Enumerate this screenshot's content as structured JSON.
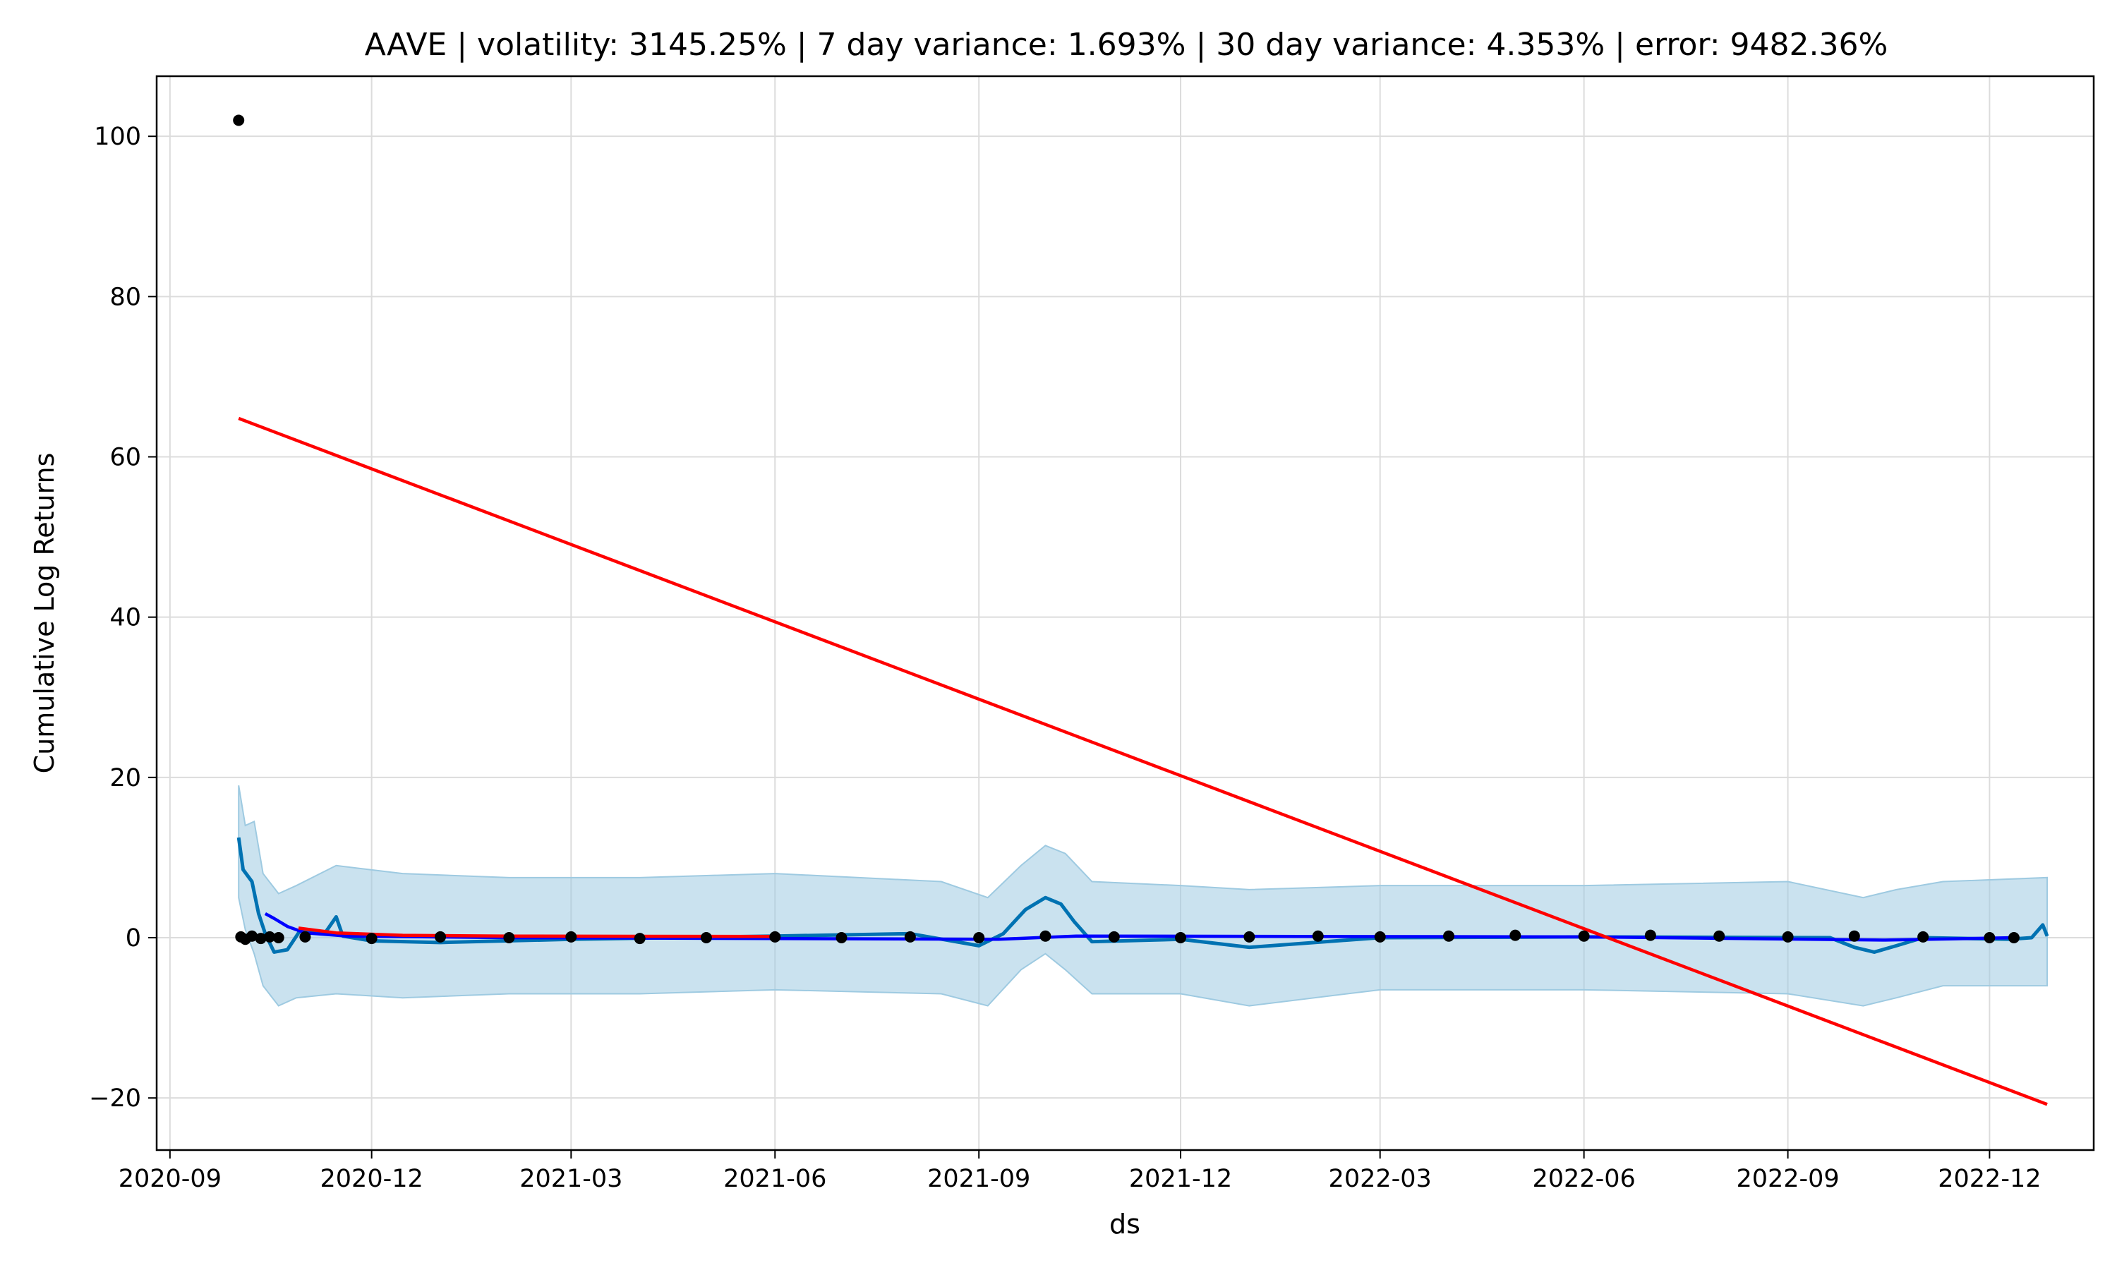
{
  "chart_data": {
    "type": "line",
    "title": "AAVE | volatility: 3145.25% | 7 day variance: 1.693% | 30 day variance: 4.353% | error: 9482.36%",
    "xlabel": "ds",
    "ylabel": "Cumulative Log Returns",
    "xlim": [
      "2020-08-26",
      "2023-01-17"
    ],
    "ylim": [
      -26.5,
      107.5
    ],
    "grid": true,
    "legend": "none",
    "x_ticks": [
      "2020-09",
      "2020-12",
      "2021-03",
      "2021-06",
      "2021-09",
      "2021-12",
      "2022-03",
      "2022-06",
      "2022-09",
      "2022-12"
    ],
    "y_ticks": [
      -20,
      0,
      20,
      40,
      60,
      80,
      100
    ],
    "y_tick_labels": [
      "−20",
      "0",
      "20",
      "40",
      "60",
      "80",
      "100"
    ],
    "colors": {
      "uncertainty_band": "#9ecae1",
      "forecast": "#0072b2",
      "observed": "#000000",
      "moving_average": "#0000ff",
      "trend_line": "#ff0000"
    },
    "series": [
      {
        "role": "observed",
        "kind": "scatter",
        "points": [
          {
            "x": "2020-10-02",
            "y": 102
          },
          {
            "x": "2020-10-03",
            "y": 0.1
          },
          {
            "x": "2020-10-05",
            "y": -0.2
          },
          {
            "x": "2020-10-08",
            "y": 0.2
          },
          {
            "x": "2020-10-12",
            "y": -0.1
          },
          {
            "x": "2020-10-16",
            "y": 0.1
          },
          {
            "x": "2020-10-20",
            "y": 0.0
          },
          {
            "x": "2020-11-01",
            "y": 0.1
          },
          {
            "x": "2020-12-01",
            "y": -0.1
          },
          {
            "x": "2021-01-01",
            "y": 0.1
          },
          {
            "x": "2021-02-01",
            "y": 0.0
          },
          {
            "x": "2021-03-01",
            "y": 0.1
          },
          {
            "x": "2021-04-01",
            "y": -0.1
          },
          {
            "x": "2021-05-01",
            "y": 0.0
          },
          {
            "x": "2021-06-01",
            "y": 0.1
          },
          {
            "x": "2021-07-01",
            "y": 0.0
          },
          {
            "x": "2021-08-01",
            "y": 0.1
          },
          {
            "x": "2021-09-01",
            "y": 0.0
          },
          {
            "x": "2021-10-01",
            "y": 0.2
          },
          {
            "x": "2021-11-01",
            "y": 0.1
          },
          {
            "x": "2021-12-01",
            "y": 0.0
          },
          {
            "x": "2022-01-01",
            "y": 0.1
          },
          {
            "x": "2022-02-01",
            "y": 0.2
          },
          {
            "x": "2022-03-01",
            "y": 0.1
          },
          {
            "x": "2022-04-01",
            "y": 0.2
          },
          {
            "x": "2022-05-01",
            "y": 0.3
          },
          {
            "x": "2022-06-01",
            "y": 0.2
          },
          {
            "x": "2022-07-01",
            "y": 0.3
          },
          {
            "x": "2022-08-01",
            "y": 0.2
          },
          {
            "x": "2022-09-01",
            "y": 0.1
          },
          {
            "x": "2022-10-01",
            "y": 0.2
          },
          {
            "x": "2022-11-01",
            "y": 0.1
          },
          {
            "x": "2022-12-01",
            "y": 0.0
          },
          {
            "x": "2022-12-12",
            "y": 0.0
          }
        ]
      },
      {
        "role": "trend_line",
        "kind": "line",
        "points": [
          {
            "x": "2020-10-02",
            "y": 64.8
          },
          {
            "x": "2022-12-27",
            "y": -20.8
          }
        ]
      },
      {
        "role": "trend_line",
        "kind": "line",
        "points": [
          {
            "x": "2020-10-29",
            "y": 1.2
          },
          {
            "x": "2020-11-15",
            "y": 0.6
          },
          {
            "x": "2020-12-15",
            "y": 0.3
          },
          {
            "x": "2021-02-01",
            "y": 0.2
          },
          {
            "x": "2021-06-01",
            "y": 0.15
          }
        ]
      },
      {
        "role": "moving_average",
        "kind": "line",
        "points": [
          {
            "x": "2020-10-14",
            "y": 3.0
          },
          {
            "x": "2020-10-18",
            "y": 2.4
          },
          {
            "x": "2020-10-24",
            "y": 1.4
          },
          {
            "x": "2020-11-01",
            "y": 0.6
          },
          {
            "x": "2020-11-20",
            "y": 0.2
          },
          {
            "x": "2021-02-01",
            "y": 0.0
          },
          {
            "x": "2021-09-10",
            "y": -0.2
          },
          {
            "x": "2021-10-15",
            "y": 0.2
          },
          {
            "x": "2022-06-01",
            "y": 0.1
          },
          {
            "x": "2022-10-15",
            "y": -0.3
          },
          {
            "x": "2022-12-12",
            "y": 0.0
          }
        ]
      },
      {
        "role": "forecast",
        "kind": "line",
        "points": [
          {
            "x": "2020-10-02",
            "y": 12.5
          },
          {
            "x": "2020-10-04",
            "y": 8.5
          },
          {
            "x": "2020-10-08",
            "y": 7.0
          },
          {
            "x": "2020-10-11",
            "y": 3.0
          },
          {
            "x": "2020-10-14",
            "y": 0.5
          },
          {
            "x": "2020-10-18",
            "y": -1.8
          },
          {
            "x": "2020-10-24",
            "y": -1.5
          },
          {
            "x": "2020-10-30",
            "y": 1.0
          },
          {
            "x": "2020-11-10",
            "y": 0.6
          },
          {
            "x": "2020-11-15",
            "y": 2.6
          },
          {
            "x": "2020-11-18",
            "y": 0.2
          },
          {
            "x": "2020-12-01",
            "y": -0.4
          },
          {
            "x": "2021-01-01",
            "y": -0.6
          },
          {
            "x": "2021-03-01",
            "y": -0.2
          },
          {
            "x": "2021-06-01",
            "y": 0.2
          },
          {
            "x": "2021-08-01",
            "y": 0.5
          },
          {
            "x": "2021-09-01",
            "y": -1.0
          },
          {
            "x": "2021-09-12",
            "y": 0.5
          },
          {
            "x": "2021-09-22",
            "y": 3.5
          },
          {
            "x": "2021-10-01",
            "y": 5.0
          },
          {
            "x": "2021-10-08",
            "y": 4.2
          },
          {
            "x": "2021-10-14",
            "y": 2.0
          },
          {
            "x": "2021-10-22",
            "y": -0.5
          },
          {
            "x": "2021-12-01",
            "y": -0.2
          },
          {
            "x": "2022-01-01",
            "y": -1.2
          },
          {
            "x": "2022-03-01",
            "y": 0.0
          },
          {
            "x": "2022-06-01",
            "y": 0.1
          },
          {
            "x": "2022-09-20",
            "y": 0.0
          },
          {
            "x": "2022-10-01",
            "y": -1.2
          },
          {
            "x": "2022-10-10",
            "y": -1.8
          },
          {
            "x": "2022-10-20",
            "y": -1.0
          },
          {
            "x": "2022-11-01",
            "y": 0.0
          },
          {
            "x": "2022-12-10",
            "y": -0.2
          },
          {
            "x": "2022-12-20",
            "y": 0.0
          },
          {
            "x": "2022-12-25",
            "y": 1.6
          },
          {
            "x": "2022-12-27",
            "y": 0.2
          }
        ]
      },
      {
        "role": "uncertainty_band",
        "kind": "area",
        "points": [
          {
            "x": "2020-10-02",
            "upper": 19.0,
            "lower": 5.0
          },
          {
            "x": "2020-10-05",
            "upper": 14.0,
            "lower": 1.0
          },
          {
            "x": "2020-10-09",
            "upper": 14.5,
            "lower": -2.0
          },
          {
            "x": "2020-10-13",
            "upper": 8.0,
            "lower": -6.0
          },
          {
            "x": "2020-10-20",
            "upper": 5.5,
            "lower": -8.5
          },
          {
            "x": "2020-10-28",
            "upper": 6.5,
            "lower": -7.5
          },
          {
            "x": "2020-11-15",
            "upper": 9.0,
            "lower": -7.0
          },
          {
            "x": "2020-12-15",
            "upper": 8.0,
            "lower": -7.5
          },
          {
            "x": "2021-02-01",
            "upper": 7.5,
            "lower": -7.0
          },
          {
            "x": "2021-04-01",
            "upper": 7.5,
            "lower": -7.0
          },
          {
            "x": "2021-06-01",
            "upper": 8.0,
            "lower": -6.5
          },
          {
            "x": "2021-08-15",
            "upper": 7.0,
            "lower": -7.0
          },
          {
            "x": "2021-09-05",
            "upper": 5.0,
            "lower": -8.5
          },
          {
            "x": "2021-09-20",
            "upper": 9.0,
            "lower": -4.0
          },
          {
            "x": "2021-10-01",
            "upper": 11.5,
            "lower": -2.0
          },
          {
            "x": "2021-10-10",
            "upper": 10.5,
            "lower": -4.0
          },
          {
            "x": "2021-10-22",
            "upper": 7.0,
            "lower": -7.0
          },
          {
            "x": "2021-12-01",
            "upper": 6.5,
            "lower": -7.0
          },
          {
            "x": "2022-01-01",
            "upper": 6.0,
            "lower": -8.5
          },
          {
            "x": "2022-03-01",
            "upper": 6.5,
            "lower": -6.5
          },
          {
            "x": "2022-06-01",
            "upper": 6.5,
            "lower": -6.5
          },
          {
            "x": "2022-09-01",
            "upper": 7.0,
            "lower": -7.0
          },
          {
            "x": "2022-10-05",
            "upper": 5.0,
            "lower": -8.5
          },
          {
            "x": "2022-10-20",
            "upper": 6.0,
            "lower": -7.5
          },
          {
            "x": "2022-11-10",
            "upper": 7.0,
            "lower": -6.0
          },
          {
            "x": "2022-12-27",
            "upper": 7.5,
            "lower": -6.0
          }
        ]
      }
    ]
  }
}
